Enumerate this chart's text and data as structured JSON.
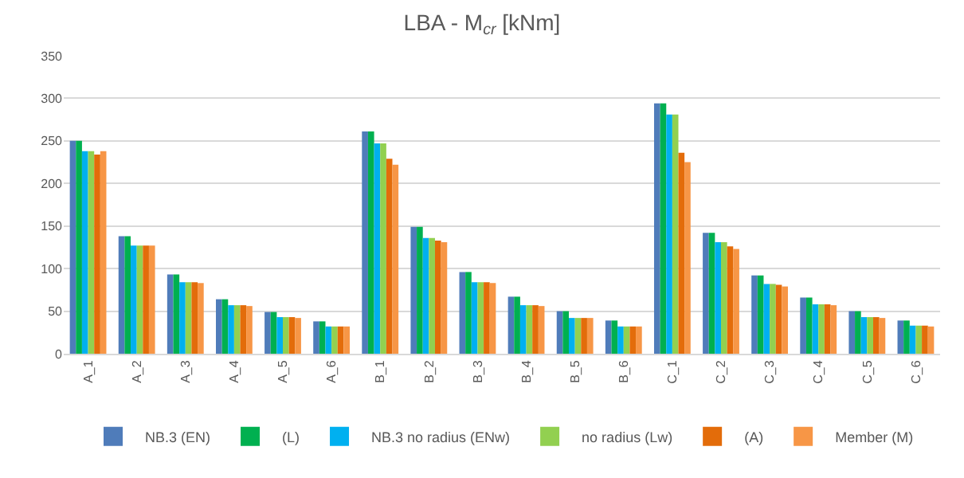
{
  "chart_data": {
    "type": "bar",
    "title": "LBA - M$_{cr}$ [kNm]",
    "categories": [
      "A_1",
      "A_2",
      "A_3",
      "A_4",
      "A_5",
      "A_6",
      "B_1",
      "B_2",
      "B_3",
      "B_4",
      "B_5",
      "B_6",
      "C_1",
      "C_2",
      "C_3",
      "C_4",
      "C_5",
      "C_6"
    ],
    "series": [
      {
        "name": "NB.3 (EN)",
        "color": "#4f7cba",
        "values": [
          250,
          138,
          93,
          64,
          49,
          38,
          261,
          149,
          96,
          67,
          50,
          39,
          294,
          142,
          92,
          66,
          50,
          39
        ]
      },
      {
        "name": "(L)",
        "color": "#00b050",
        "values": [
          250,
          138,
          93,
          64,
          49,
          38,
          261,
          149,
          96,
          67,
          50,
          39,
          294,
          142,
          92,
          66,
          50,
          39
        ]
      },
      {
        "name": "NB.3 no radius (ENw)",
        "color": "#00b0f0",
        "values": [
          238,
          127,
          84,
          57,
          43,
          32,
          247,
          136,
          84,
          57,
          42,
          32,
          281,
          131,
          82,
          58,
          43,
          33
        ]
      },
      {
        "name": "no radius (Lw)",
        "color": "#92d050",
        "values": [
          238,
          127,
          84,
          57,
          43,
          32,
          247,
          136,
          84,
          57,
          42,
          32,
          281,
          131,
          82,
          58,
          43,
          33
        ]
      },
      {
        "name": "(A)",
        "color": "#e36c0a",
        "values": [
          234,
          127,
          84,
          57,
          43,
          32,
          229,
          133,
          84,
          57,
          42,
          32,
          236,
          126,
          81,
          58,
          43,
          33
        ]
      },
      {
        "name": "Member (M)",
        "color": "#f79646",
        "values": [
          238,
          127,
          83,
          56,
          42,
          32,
          222,
          131,
          83,
          56,
          42,
          32,
          225,
          123,
          79,
          57,
          42,
          32
        ]
      }
    ],
    "ylim": [
      0,
      350
    ],
    "yticks": [
      0,
      50,
      100,
      150,
      200,
      250,
      300,
      350
    ],
    "grid": "y",
    "legend": "bottom"
  }
}
